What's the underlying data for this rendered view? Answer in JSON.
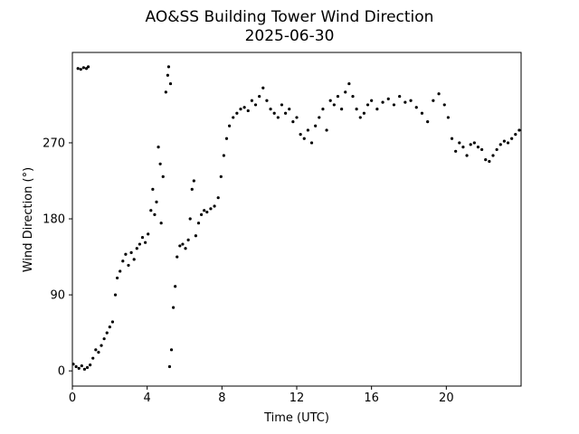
{
  "chart_data": {
    "type": "scatter",
    "title": "AO&SS Building Tower Wind Direction",
    "subtitle": "2025-06-30",
    "xlabel": "Time (UTC)",
    "ylabel": "Wind Direction (°)",
    "color": "#000000",
    "xlim": [
      0,
      24
    ],
    "ylim": [
      -18,
      377
    ],
    "xticks": [
      0,
      4,
      8,
      12,
      16,
      20
    ],
    "yticks": [
      0,
      90,
      180,
      270
    ],
    "series": [
      {
        "name": "Wind Direction",
        "x": [
          0.05,
          0.2,
          0.35,
          0.5,
          0.65,
          0.8,
          0.95,
          0.3,
          0.45,
          0.6,
          0.75,
          0.85,
          1.1,
          1.25,
          1.4,
          1.55,
          1.7,
          1.85,
          2.0,
          2.15,
          2.3,
          2.4,
          2.55,
          2.7,
          2.85,
          3.0,
          3.15,
          3.3,
          3.45,
          3.6,
          3.75,
          3.9,
          4.05,
          4.2,
          4.3,
          4.4,
          4.5,
          4.6,
          4.7,
          4.75,
          4.85,
          5.0,
          5.1,
          5.15,
          5.25,
          5.2,
          5.3,
          5.4,
          5.5,
          5.6,
          5.75,
          5.9,
          6.05,
          6.2,
          6.3,
          6.4,
          6.5,
          6.6,
          6.75,
          6.9,
          7.05,
          7.2,
          7.4,
          7.6,
          7.8,
          7.95,
          8.1,
          8.25,
          8.4,
          8.6,
          8.8,
          9.0,
          9.2,
          9.4,
          9.6,
          9.8,
          10.0,
          10.2,
          10.4,
          10.6,
          10.8,
          11.0,
          11.2,
          11.4,
          11.6,
          11.8,
          12.0,
          12.2,
          12.4,
          12.6,
          12.8,
          13.0,
          13.2,
          13.4,
          13.6,
          13.8,
          14.0,
          14.2,
          14.4,
          14.6,
          14.8,
          15.0,
          15.2,
          15.4,
          15.6,
          15.8,
          16.0,
          16.3,
          16.6,
          16.9,
          17.2,
          17.5,
          17.8,
          18.1,
          18.4,
          18.7,
          19.0,
          19.3,
          19.6,
          19.9,
          20.1,
          20.3,
          20.5,
          20.7,
          20.9,
          21.1,
          21.3,
          21.5,
          21.7,
          21.9,
          22.1,
          22.3,
          22.5,
          22.7,
          22.9,
          23.1,
          23.3,
          23.5,
          23.7,
          23.9
        ],
        "values": [
          8,
          5,
          3,
          6,
          2,
          4,
          7,
          358,
          357,
          359,
          358,
          360,
          15,
          25,
          22,
          30,
          38,
          45,
          52,
          58,
          90,
          110,
          118,
          130,
          138,
          125,
          140,
          132,
          145,
          150,
          158,
          152,
          162,
          190,
          215,
          185,
          200,
          265,
          245,
          175,
          230,
          330,
          350,
          360,
          340,
          5,
          25,
          75,
          100,
          135,
          148,
          150,
          145,
          155,
          180,
          215,
          225,
          160,
          175,
          185,
          190,
          188,
          192,
          195,
          205,
          230,
          255,
          275,
          290,
          300,
          305,
          310,
          312,
          308,
          320,
          315,
          325,
          335,
          320,
          310,
          305,
          300,
          315,
          305,
          310,
          295,
          300,
          280,
          275,
          285,
          270,
          290,
          300,
          310,
          285,
          320,
          315,
          325,
          310,
          330,
          340,
          325,
          310,
          300,
          305,
          315,
          320,
          310,
          318,
          322,
          315,
          325,
          318,
          320,
          312,
          305,
          295,
          320,
          328,
          315,
          300,
          275,
          260,
          270,
          265,
          255,
          268,
          270,
          265,
          262,
          250,
          248,
          255,
          262,
          268,
          272,
          270,
          275,
          280,
          285
        ]
      }
    ]
  }
}
